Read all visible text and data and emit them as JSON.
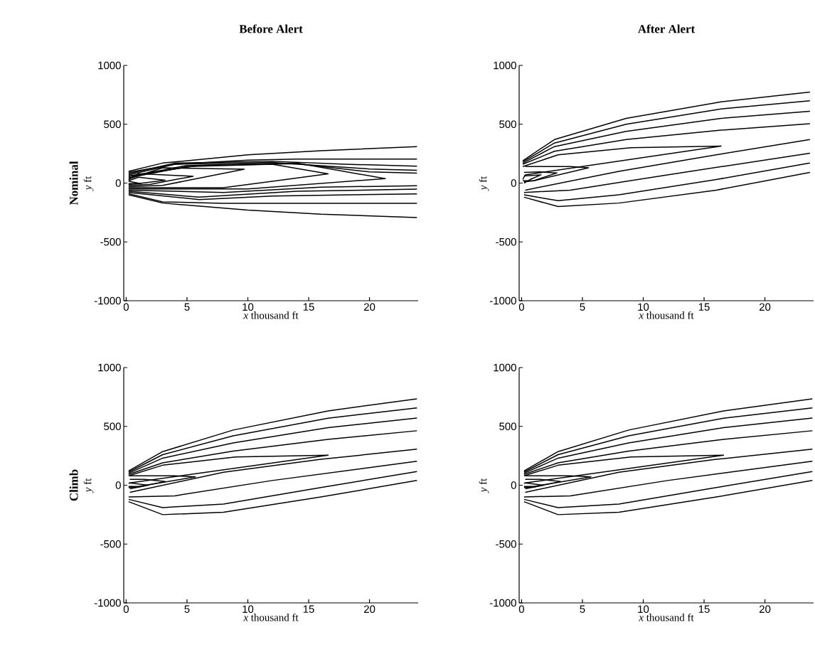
{
  "chart_data": [
    {
      "type": "line",
      "title": "Before Alert",
      "xlabel": "*x* thousand ft",
      "ylabel": "*y* ft",
      "annotations": [
        "Nominal"
      ],
      "marker": "none",
      "line_style": "solid",
      "grid": false,
      "xlim": [
        -0.2,
        24
      ],
      "ylim": [
        -1000,
        1000
      ],
      "xticks": [
        0,
        5,
        10,
        15,
        20
      ],
      "yticks": [
        -1000,
        -500,
        0,
        500,
        1000
      ],
      "series": [
        {
          "color": "#000000",
          "x": [
            0.2,
            3,
            10,
            16,
            23.9
          ],
          "values": [
            100,
            170,
            240,
            275,
            309
          ]
        },
        {
          "color": "#000000",
          "x": [
            0.2,
            4,
            10,
            14,
            23.9
          ],
          "values": [
            90,
            160,
            195,
            204,
            204
          ]
        },
        {
          "color": "#000000",
          "x": [
            0.2,
            4,
            12,
            18,
            23.9
          ],
          "values": [
            80,
            170,
            185,
            160,
            144
          ]
        },
        {
          "color": "#000000",
          "x": [
            0.2,
            4,
            12,
            20,
            23.9
          ],
          "values": [
            70,
            160,
            175,
            120,
            108
          ]
        },
        {
          "color": "#000000",
          "x": [
            0.2,
            6,
            14,
            20,
            23.9
          ],
          "values": [
            60,
            150,
            165,
            95,
            84
          ]
        },
        {
          "color": "#000000",
          "x": [
            0.2,
            8,
            16,
            23.9
          ],
          "values": [
            -60,
            -80,
            -35,
            -22
          ]
        },
        {
          "color": "#000000",
          "x": [
            0.2,
            6,
            14,
            23.9
          ],
          "values": [
            -70,
            -120,
            -70,
            -52
          ]
        },
        {
          "color": "#000000",
          "x": [
            0.2,
            6,
            12,
            23.9
          ],
          "values": [
            -80,
            -140,
            -110,
            -92
          ]
        },
        {
          "color": "#000000",
          "x": [
            0.2,
            3,
            8,
            23.9
          ],
          "values": [
            -90,
            -160,
            -172,
            -172
          ]
        },
        {
          "color": "#000000",
          "x": [
            0.2,
            3,
            10,
            16,
            23.9
          ],
          "values": [
            -100,
            -170,
            -230,
            -265,
            -293
          ]
        },
        {
          "color": "#000000",
          "x": [
            0.2,
            5,
            14,
            21.3,
            10,
            0.2
          ],
          "values": [
            55,
            150,
            170,
            38,
            -50,
            -50
          ]
        },
        {
          "color": "#000000",
          "x": [
            0.2,
            5,
            12,
            16.6,
            8,
            0.2
          ],
          "values": [
            45,
            140,
            160,
            78,
            -40,
            -40
          ]
        },
        {
          "color": "#000000",
          "x": [
            0.2,
            3,
            9.7,
            3,
            0.2
          ],
          "values": [
            35,
            130,
            118,
            -20,
            -30
          ]
        },
        {
          "color": "#000000",
          "x": [
            0.2,
            1,
            5.5,
            2,
            0.2
          ],
          "values": [
            30,
            80,
            58,
            -10,
            -20
          ]
        },
        {
          "color": "#000000",
          "x": [
            0.2,
            1,
            3.2,
            1,
            0.2
          ],
          "values": [
            20,
            50,
            24,
            -5,
            -10
          ]
        },
        {
          "color": "#000000",
          "x": [
            0.2,
            1.2,
            0.2
          ],
          "values": [
            15,
            -5,
            -5
          ]
        }
      ]
    },
    {
      "type": "line",
      "title": "After Alert",
      "xlabel": "*x* thousand ft",
      "ylabel": "*y* ft",
      "marker": "none",
      "line_style": "solid",
      "grid": false,
      "xlim": [
        -0.2,
        24
      ],
      "ylim": [
        -1000,
        1000
      ],
      "xticks": [
        0,
        5,
        10,
        15,
        20
      ],
      "yticks": [
        -1000,
        -500,
        0,
        500,
        1000
      ],
      "series": [
        {
          "color": "#000000",
          "x": [
            0.1,
            2.7,
            8.6,
            16.4,
            23.7
          ],
          "values": [
            190,
            370,
            550,
            690,
            774
          ]
        },
        {
          "color": "#000000",
          "x": [
            0.1,
            2.7,
            8.6,
            16.4,
            23.7
          ],
          "values": [
            180,
            340,
            500,
            630,
            700
          ]
        },
        {
          "color": "#000000",
          "x": [
            0.1,
            2.7,
            8.6,
            16.4,
            23.7
          ],
          "values": [
            170,
            310,
            440,
            550,
            610
          ]
        },
        {
          "color": "#000000",
          "x": [
            0.1,
            2.7,
            8.6,
            16.4,
            23.7
          ],
          "values": [
            160,
            270,
            370,
            450,
            504
          ]
        },
        {
          "color": "#000000",
          "x": [
            0.1,
            3,
            9,
            16.4,
            0.3,
            0.1
          ],
          "values": [
            140,
            240,
            300,
            314,
            70,
            30
          ]
        },
        {
          "color": "#000000",
          "x": [
            0.3,
            4,
            5.5,
            1,
            0.1
          ],
          "values": [
            140,
            140,
            130,
            20,
            20
          ]
        },
        {
          "color": "#000000",
          "x": [
            0.2,
            1.5,
            2.9,
            1,
            0.2
          ],
          "values": [
            90,
            95,
            86,
            20,
            10
          ]
        },
        {
          "color": "#000000",
          "x": [
            0.2,
            1.6,
            0.7,
            0.2
          ],
          "values": [
            60,
            70,
            30,
            0
          ]
        },
        {
          "color": "#000000",
          "x": [
            0.3,
            8,
            16,
            23.7
          ],
          "values": [
            -60,
            100,
            240,
            370
          ]
        },
        {
          "color": "#000000",
          "x": [
            0.2,
            4,
            12,
            23.7
          ],
          "values": [
            -80,
            -60,
            70,
            254
          ]
        },
        {
          "color": "#000000",
          "x": [
            0.2,
            3,
            8,
            16,
            23.7
          ],
          "values": [
            -100,
            -150,
            -100,
            30,
            170
          ]
        },
        {
          "color": "#000000",
          "x": [
            0.2,
            3,
            8,
            16,
            23.7
          ],
          "values": [
            -120,
            -200,
            -170,
            -60,
            90
          ]
        }
      ]
    },
    {
      "type": "line",
      "xlabel": "*x* thousand ft",
      "ylabel": "*y* ft",
      "annotations": [
        "Climb"
      ],
      "marker": "none",
      "line_style": "solid",
      "grid": false,
      "xlim": [
        -0.2,
        24
      ],
      "ylim": [
        -1000,
        1000
      ],
      "xticks": [
        0,
        5,
        10,
        15,
        20
      ],
      "yticks": [
        -1000,
        -500,
        0,
        500,
        1000
      ],
      "series": [
        {
          "color": "#000000",
          "x": [
            0.2,
            3,
            8.8,
            16.6,
            23.9
          ],
          "values": [
            122,
            286,
            469,
            632,
            734
          ]
        },
        {
          "color": "#000000",
          "x": [
            0.2,
            3,
            8.8,
            16.6,
            23.9
          ],
          "values": [
            112,
            260,
            420,
            570,
            657
          ]
        },
        {
          "color": "#000000",
          "x": [
            0.2,
            3,
            8.8,
            16.6,
            23.9
          ],
          "values": [
            102,
            230,
            360,
            490,
            571
          ]
        },
        {
          "color": "#000000",
          "x": [
            0.2,
            3,
            8.8,
            16.6,
            23.9
          ],
          "values": [
            92,
            190,
            290,
            390,
            463
          ]
        },
        {
          "color": "#000000",
          "x": [
            0.2,
            3,
            9,
            16.6,
            0.3,
            0.2
          ],
          "values": [
            80,
            170,
            240,
            255,
            20,
            15
          ]
        },
        {
          "color": "#000000",
          "x": [
            0.3,
            4,
            5.7,
            1,
            0.2
          ],
          "values": [
            80,
            80,
            71,
            -10,
            -10
          ]
        },
        {
          "color": "#000000",
          "x": [
            0.3,
            1.5,
            3.2,
            1,
            0.2
          ],
          "values": [
            50,
            50,
            31,
            -15,
            -20
          ]
        },
        {
          "color": "#000000",
          "x": [
            0.3,
            1.8,
            0.3
          ],
          "values": [
            20,
            0,
            -30
          ]
        },
        {
          "color": "#000000",
          "x": [
            0.3,
            8,
            16,
            23.9
          ],
          "values": [
            -60,
            110,
            220,
            306
          ]
        },
        {
          "color": "#000000",
          "x": [
            0.2,
            4,
            12,
            23.9
          ],
          "values": [
            -100,
            -90,
            40,
            204
          ]
        },
        {
          "color": "#000000",
          "x": [
            0.2,
            3,
            8,
            16,
            23.9
          ],
          "values": [
            -120,
            -190,
            -160,
            -20,
            116
          ]
        },
        {
          "color": "#000000",
          "x": [
            0.2,
            3,
            8,
            16,
            23.9
          ],
          "values": [
            -140,
            -250,
            -230,
            -100,
            41
          ]
        }
      ]
    },
    {
      "type": "line",
      "xlabel": "*x* thousand ft",
      "ylabel": "*y* ft",
      "marker": "none",
      "line_style": "solid",
      "grid": false,
      "xlim": [
        -0.2,
        24
      ],
      "ylim": [
        -1000,
        1000
      ],
      "xticks": [
        0,
        5,
        10,
        15,
        20
      ],
      "yticks": [
        -1000,
        -500,
        0,
        500,
        1000
      ],
      "series": [
        {
          "color": "#000000",
          "x": [
            0.2,
            3,
            8.8,
            16.6,
            23.9
          ],
          "values": [
            122,
            286,
            469,
            632,
            734
          ]
        },
        {
          "color": "#000000",
          "x": [
            0.2,
            3,
            8.8,
            16.6,
            23.9
          ],
          "values": [
            112,
            260,
            420,
            570,
            657
          ]
        },
        {
          "color": "#000000",
          "x": [
            0.2,
            3,
            8.8,
            16.6,
            23.9
          ],
          "values": [
            102,
            230,
            360,
            490,
            571
          ]
        },
        {
          "color": "#000000",
          "x": [
            0.2,
            3,
            8.8,
            16.6,
            23.9
          ],
          "values": [
            92,
            190,
            290,
            390,
            463
          ]
        },
        {
          "color": "#000000",
          "x": [
            0.2,
            3,
            9,
            16.6,
            0.3,
            0.2
          ],
          "values": [
            80,
            170,
            240,
            255,
            20,
            15
          ]
        },
        {
          "color": "#000000",
          "x": [
            0.3,
            4,
            5.7,
            1,
            0.2
          ],
          "values": [
            80,
            80,
            71,
            -10,
            -10
          ]
        },
        {
          "color": "#000000",
          "x": [
            0.3,
            1.5,
            3.2,
            1,
            0.2
          ],
          "values": [
            50,
            50,
            31,
            -15,
            -20
          ]
        },
        {
          "color": "#000000",
          "x": [
            0.3,
            1.8,
            0.3
          ],
          "values": [
            20,
            0,
            -30
          ]
        },
        {
          "color": "#000000",
          "x": [
            0.3,
            8,
            16,
            23.9
          ],
          "values": [
            -60,
            110,
            220,
            306
          ]
        },
        {
          "color": "#000000",
          "x": [
            0.2,
            4,
            12,
            23.9
          ],
          "values": [
            -100,
            -90,
            40,
            204
          ]
        },
        {
          "color": "#000000",
          "x": [
            0.2,
            3,
            8,
            16,
            23.9
          ],
          "values": [
            -120,
            -190,
            -160,
            -20,
            116
          ]
        },
        {
          "color": "#000000",
          "x": [
            0.2,
            3,
            8,
            16,
            23.9
          ],
          "values": [
            -140,
            -250,
            -230,
            -100,
            41
          ]
        }
      ]
    }
  ]
}
